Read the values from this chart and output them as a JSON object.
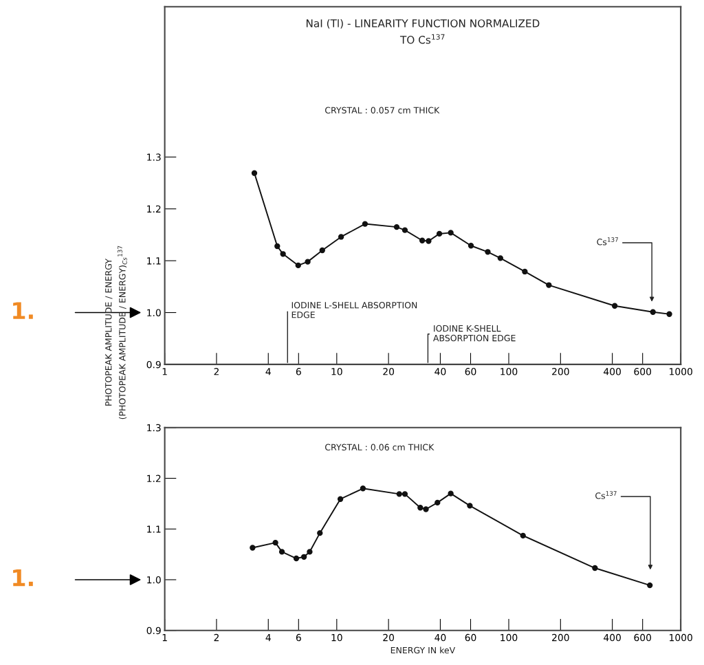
{
  "chart_data": [
    {
      "type": "line",
      "title": "NaI (Tl) - LINEARITY FUNCTION NORMALIZED\nTO Cs$^{137}$",
      "ylabel": "PHOTOPEAK AMPLITUDE / ENERGY\n(PHOTOPEAK AMPLITUDE / ENERGY)$_{Cs}$$^{137}$",
      "log": "x",
      "marker": "circle",
      "line_style": "solid",
      "xlim": [
        1,
        1000
      ],
      "ylim": [
        0.9,
        1.59
      ],
      "xticks": [
        1,
        2,
        4,
        6,
        10,
        20,
        40,
        60,
        100,
        200,
        400,
        600,
        1000
      ],
      "yticks": [
        0.9,
        {
          "value": 1.0,
          "label": "1.0"
        },
        1.1,
        1.2,
        1.3
      ],
      "series": [
        {
          "color": "#111111",
          "x": [
            3.32,
            4.51,
            4.87,
            5.97,
            6.78,
            8.24,
            10.6,
            14.6,
            22.3,
            24.9,
            31.4,
            34.2,
            39.5,
            46.0,
            60.3,
            75.5,
            89.4,
            124,
            171,
            413,
            689,
            858
          ],
          "values": [
            1.269,
            1.128,
            1.113,
            1.091,
            1.098,
            1.12,
            1.146,
            1.171,
            1.165,
            1.159,
            1.139,
            1.138,
            1.152,
            1.154,
            1.129,
            1.117,
            1.105,
            1.079,
            1.053,
            1.013,
            1.001,
            0.997
          ]
        }
      ],
      "annotations": [
        "CRYSTAL : 0.057 cm THICK",
        "IODINE L-SHELL ABSORPTION\nEDGE",
        "IODINE K-SHELL\nABSORPTION EDGE",
        "Cs$^{137}$",
        "1."
      ]
    },
    {
      "type": "line",
      "xlabel": "ENERGY IN keV",
      "log": "x",
      "marker": "circle",
      "line_style": "solid",
      "xlim": [
        1,
        1000
      ],
      "ylim": [
        0.9,
        1.3
      ],
      "xticks": [
        1,
        2,
        4,
        6,
        10,
        20,
        40,
        60,
        100,
        200,
        400,
        600,
        1000
      ],
      "yticks": [
        0.9,
        {
          "value": 1.0,
          "label": "1.0"
        },
        1.1,
        1.2,
        1.3
      ],
      "series": [
        {
          "color": "#111111",
          "x": [
            3.24,
            4.4,
            4.8,
            5.82,
            6.45,
            6.96,
            7.98,
            10.5,
            14.2,
            23.1,
            24.9,
            30.6,
            33.0,
            38.5,
            46.0,
            59.4,
            121,
            317,
            661
          ],
          "values": [
            1.063,
            1.073,
            1.055,
            1.042,
            1.045,
            1.055,
            1.092,
            1.159,
            1.18,
            1.169,
            1.169,
            1.142,
            1.139,
            1.152,
            1.17,
            1.146,
            1.087,
            1.023,
            0.989
          ]
        }
      ],
      "annotations": [
        "CRYSTAL : 0.06 cm THICK",
        "Cs$^{137}$",
        "1."
      ]
    }
  ]
}
